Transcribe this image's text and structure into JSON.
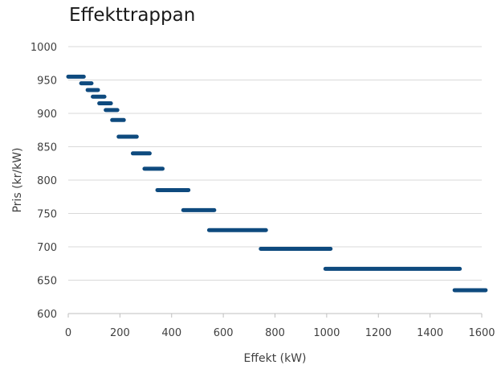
{
  "chart_data": {
    "type": "line",
    "title": "Effekttrappan",
    "xlabel": "Effekt (kW)",
    "ylabel": "Pris (kr/kW)",
    "xlim": [
      0,
      1600
    ],
    "ylim": [
      600,
      1000
    ],
    "xticks": [
      0,
      200,
      400,
      600,
      800,
      1000,
      1200,
      1400,
      1600
    ],
    "yticks": [
      600,
      650,
      700,
      750,
      800,
      850,
      900,
      950,
      1000
    ],
    "grid": "horizontal",
    "line_color": "#0e4a7e",
    "segments": [
      {
        "x_start": 0,
        "x_end": 60,
        "y": 955
      },
      {
        "x_start": 50,
        "x_end": 90,
        "y": 945
      },
      {
        "x_start": 75,
        "x_end": 115,
        "y": 935
      },
      {
        "x_start": 95,
        "x_end": 140,
        "y": 925
      },
      {
        "x_start": 120,
        "x_end": 165,
        "y": 915
      },
      {
        "x_start": 145,
        "x_end": 190,
        "y": 905
      },
      {
        "x_start": 170,
        "x_end": 215,
        "y": 890
      },
      {
        "x_start": 195,
        "x_end": 265,
        "y": 865
      },
      {
        "x_start": 250,
        "x_end": 315,
        "y": 840
      },
      {
        "x_start": 295,
        "x_end": 365,
        "y": 817
      },
      {
        "x_start": 345,
        "x_end": 465,
        "y": 785
      },
      {
        "x_start": 445,
        "x_end": 565,
        "y": 755
      },
      {
        "x_start": 545,
        "x_end": 765,
        "y": 725
      },
      {
        "x_start": 745,
        "x_end": 1015,
        "y": 697
      },
      {
        "x_start": 995,
        "x_end": 1515,
        "y": 667
      },
      {
        "x_start": 1495,
        "x_end": 1615,
        "y": 635
      }
    ]
  }
}
